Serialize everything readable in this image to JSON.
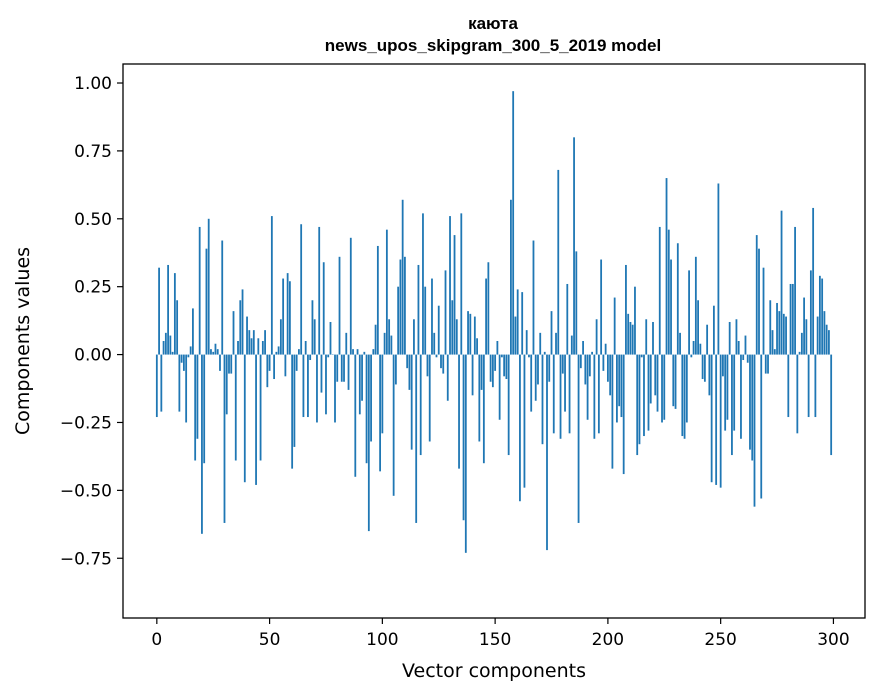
{
  "chart_data": {
    "type": "bar",
    "title": "каюта",
    "subtitle": "news_upos_skipgram_300_5_2019 model",
    "xlabel": "Vector components",
    "ylabel": "Components values",
    "xlim": [
      -15,
      314
    ],
    "ylim": [
      -0.97,
      1.07
    ],
    "xticks": [
      0,
      50,
      100,
      150,
      200,
      250,
      300
    ],
    "yticks": [
      -0.75,
      -0.5,
      -0.25,
      0.0,
      0.25,
      0.5,
      0.75,
      1.0
    ],
    "ytick_labels": [
      "−0.75",
      "−0.50",
      "−0.25",
      "0.00",
      "0.25",
      "0.50",
      "0.75",
      "1.00"
    ],
    "bar_color": "#1f77b4",
    "grid": false,
    "values": [
      -0.23,
      0.32,
      -0.21,
      0.05,
      0.08,
      0.33,
      0.07,
      0.01,
      0.3,
      0.2,
      -0.21,
      -0.03,
      -0.06,
      -0.25,
      -0.01,
      0.03,
      0.17,
      -0.39,
      -0.31,
      0.47,
      -0.66,
      -0.4,
      0.39,
      0.5,
      0.02,
      0.01,
      0.04,
      0.02,
      -0.06,
      0.42,
      -0.62,
      -0.22,
      -0.07,
      -0.07,
      0.16,
      -0.39,
      0.05,
      0.2,
      0.24,
      -0.47,
      0.14,
      0.09,
      0.06,
      0.09,
      -0.48,
      0.06,
      -0.39,
      0.05,
      0.09,
      -0.12,
      -0.06,
      0.51,
      -0.09,
      0.01,
      0.03,
      0.13,
      0.28,
      -0.08,
      0.3,
      0.27,
      -0.42,
      -0.34,
      -0.06,
      0.02,
      0.48,
      -0.23,
      0.05,
      -0.23,
      -0.02,
      0.2,
      0.13,
      -0.25,
      0.47,
      -0.14,
      0.34,
      -0.22,
      -0.01,
      0.12,
      0.0,
      -0.25,
      -0.1,
      0.36,
      -0.1,
      -0.1,
      0.08,
      -0.13,
      0.43,
      0.02,
      -0.45,
      0.02,
      -0.22,
      -0.17,
      0.01,
      -0.4,
      -0.65,
      -0.32,
      0.02,
      0.11,
      0.4,
      -0.43,
      -0.29,
      0.08,
      0.46,
      0.13,
      0.07,
      -0.52,
      -0.11,
      0.25,
      0.35,
      0.57,
      0.36,
      -0.05,
      -0.13,
      -0.35,
      0.13,
      -0.62,
      0.33,
      -0.37,
      0.52,
      0.25,
      -0.08,
      -0.32,
      0.28,
      0.08,
      -0.01,
      0.18,
      -0.05,
      -0.07,
      0.31,
      -0.17,
      0.51,
      0.2,
      0.44,
      0.13,
      -0.42,
      0.52,
      -0.61,
      -0.73,
      0.16,
      0.15,
      -0.15,
      0.14,
      0.06,
      -0.32,
      -0.13,
      -0.4,
      0.28,
      0.34,
      -0.1,
      -0.12,
      -0.06,
      0.05,
      -0.24,
      -0.01,
      -0.08,
      -0.09,
      -0.37,
      0.57,
      0.97,
      0.14,
      0.24,
      -0.54,
      0.23,
      -0.49,
      0.09,
      -0.01,
      -0.21,
      0.42,
      -0.17,
      -0.11,
      0.08,
      -0.33,
      0.01,
      -0.72,
      -0.1,
      0.16,
      -0.29,
      0.08,
      0.68,
      -0.31,
      -0.07,
      -0.21,
      0.26,
      -0.29,
      0.07,
      0.8,
      0.38,
      -0.62,
      -0.05,
      0.05,
      -0.11,
      -0.24,
      -0.08,
      0.01,
      -0.31,
      0.13,
      -0.29,
      0.35,
      -0.06,
      0.04,
      -0.1,
      -0.15,
      -0.42,
      0.21,
      -0.25,
      -0.19,
      -0.23,
      -0.44,
      0.33,
      0.15,
      0.12,
      0.11,
      0.25,
      -0.37,
      -0.33,
      -0.01,
      -0.3,
      0.13,
      -0.28,
      -0.18,
      0.12,
      -0.15,
      -0.21,
      0.47,
      -0.25,
      -0.24,
      0.65,
      0.46,
      0.35,
      -0.19,
      -0.2,
      0.41,
      0.08,
      -0.3,
      -0.31,
      -0.25,
      0.31,
      -0.01,
      0.05,
      0.36,
      0.2,
      0.04,
      -0.09,
      -0.1,
      0.11,
      -0.15,
      -0.47,
      0.18,
      -0.48,
      0.63,
      -0.49,
      -0.08,
      -0.28,
      -0.24,
      0.12,
      -0.37,
      -0.28,
      0.13,
      0.05,
      -0.31,
      -0.02,
      0.07,
      -0.03,
      -0.35,
      -0.39,
      -0.56,
      0.44,
      0.39,
      -0.53,
      0.32,
      -0.07,
      -0.07,
      0.2,
      0.09,
      0.02,
      0.19,
      0.16,
      0.53,
      0.15,
      0.14,
      -0.23,
      0.26,
      0.26,
      0.47,
      -0.29,
      0.01,
      0.08,
      0.21,
      0.13,
      -0.23,
      0.31,
      0.54,
      -0.23,
      0.14,
      0.29,
      0.28,
      0.16,
      0.11,
      0.09,
      -0.37
    ]
  }
}
